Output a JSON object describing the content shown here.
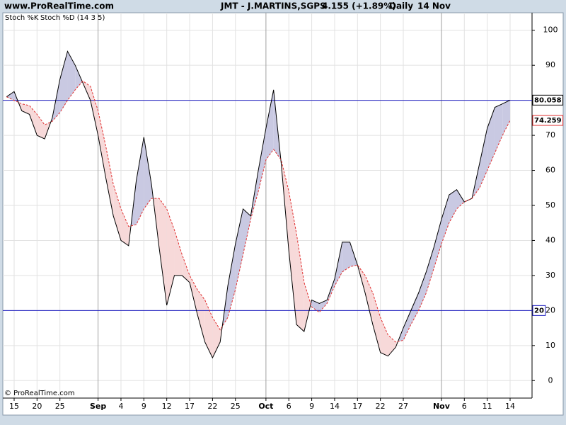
{
  "chart_data": {
    "type": "line",
    "site": "www.ProRealTime.com",
    "title": "JMT - J.MARTINS,SGPS",
    "price": "4.155 (+1.89%)",
    "period": "Daily",
    "date": "14 Nov",
    "copyright": "© ProRealTime.com",
    "categories": [
      null,
      "15",
      null,
      null,
      "20",
      null,
      null,
      "25",
      null,
      null,
      null,
      null,
      "Sep",
      null,
      null,
      "4",
      null,
      null,
      "9",
      null,
      null,
      "12",
      null,
      null,
      "17",
      null,
      null,
      "22",
      null,
      null,
      "25",
      null,
      null,
      null,
      "Oct",
      null,
      null,
      "6",
      null,
      null,
      "9",
      null,
      null,
      "14",
      null,
      null,
      "17",
      null,
      null,
      "22",
      null,
      null,
      "27",
      null,
      null,
      null,
      null,
      "Nov",
      null,
      null,
      "6",
      null,
      null,
      "11",
      null,
      null,
      "14"
    ],
    "series": [
      {
        "name": "Stoch %K",
        "color": "#000000",
        "values": [
          81,
          82.5,
          77,
          76,
          70,
          69,
          75,
          86,
          94,
          90,
          85,
          80,
          70,
          58,
          47,
          40,
          38.5,
          57,
          69.5,
          56,
          38,
          21.5,
          30,
          30,
          28,
          19,
          11,
          6.5,
          11,
          27,
          39,
          49,
          47,
          60,
          72,
          83,
          62,
          37,
          16,
          14,
          23,
          22,
          23,
          29,
          39.5,
          39.5,
          33,
          25,
          16,
          8,
          7,
          9.5,
          15,
          20,
          25,
          31,
          38,
          46,
          53,
          54.5,
          51,
          52,
          62,
          72,
          78,
          79,
          80.058
        ]
      },
      {
        "name": "Stoch %D (14 3 5)",
        "color": "#e03030",
        "values": [
          81,
          80,
          79,
          78.5,
          76,
          73,
          74,
          76.5,
          80,
          83,
          85.5,
          84,
          77,
          67,
          56,
          49,
          44,
          44.5,
          49,
          52,
          52,
          49,
          43,
          36,
          30,
          26,
          23,
          18,
          14.5,
          18,
          26,
          36,
          46,
          54,
          63,
          66,
          63,
          54,
          42,
          28,
          21,
          19.5,
          22,
          27,
          31,
          32.5,
          33,
          30,
          25,
          18,
          13,
          11,
          11.5,
          16,
          20,
          25,
          32,
          39,
          45,
          49,
          51,
          52,
          55,
          60,
          65,
          70,
          74.259
        ]
      }
    ],
    "hlines": [
      80,
      20
    ],
    "hline_color": "#2020c0",
    "up_fill": "#c9c9e2",
    "down_fill": "#f7d9d9",
    "ylim": [
      -5,
      105
    ],
    "yticks": [
      0,
      10,
      20,
      30,
      40,
      50,
      60,
      70,
      80,
      90,
      100
    ],
    "grid": true
  }
}
